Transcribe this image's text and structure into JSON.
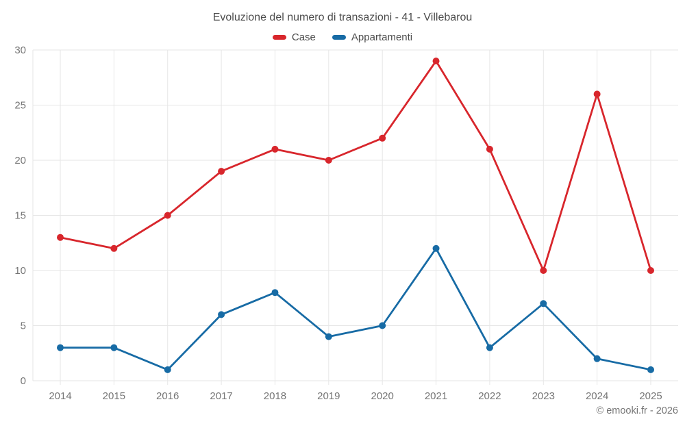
{
  "footer": {
    "copyright": "© emooki.fr - 2026"
  },
  "chart_data": {
    "type": "line",
    "title": "Evoluzione del numero di transazioni - 41 - Villebarou",
    "xlabel": "",
    "ylabel": "",
    "categories": [
      "2014",
      "2015",
      "2016",
      "2017",
      "2018",
      "2019",
      "2020",
      "2021",
      "2022",
      "2023",
      "2024",
      "2025"
    ],
    "series": [
      {
        "name": "Case",
        "color": "#d8262c",
        "values": [
          13,
          12,
          15,
          19,
          21,
          20,
          22,
          29,
          21,
          10,
          26,
          10
        ]
      },
      {
        "name": "Appartamenti",
        "color": "#176ba5",
        "values": [
          3,
          3,
          1,
          6,
          8,
          4,
          5,
          12,
          3,
          7,
          2,
          1
        ]
      }
    ],
    "ylim": [
      0,
      30
    ],
    "yticks": [
      0,
      5,
      10,
      15,
      20,
      25,
      30
    ],
    "grid": true,
    "grid_color": "#e6e6e6",
    "legend_position": "top",
    "marker": "circle"
  }
}
